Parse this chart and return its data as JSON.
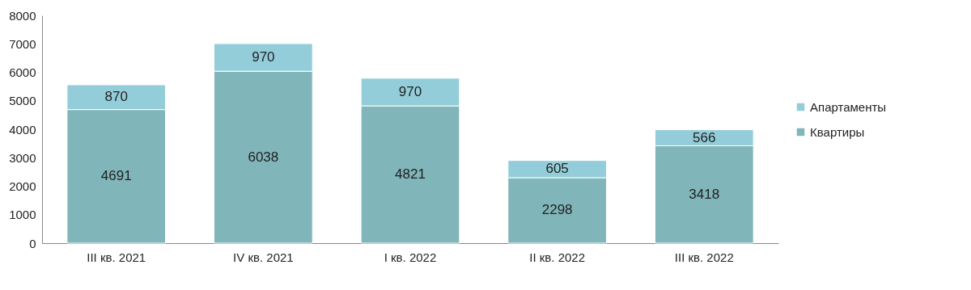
{
  "chart_data": {
    "type": "bar",
    "stacked": true,
    "categories": [
      "III кв. 2021",
      "IV кв. 2021",
      "I кв. 2022",
      "II кв. 2022",
      "III кв. 2022"
    ],
    "series": [
      {
        "name": "Квартиры",
        "color": "#80b5b9",
        "values": [
          4691,
          6038,
          4821,
          2298,
          3418
        ]
      },
      {
        "name": "Апартаменты",
        "color": "#93cdd9",
        "values": [
          870,
          970,
          970,
          605,
          566
        ]
      }
    ],
    "ylim": [
      0,
      8000
    ],
    "yticks": [
      0,
      1000,
      2000,
      3000,
      4000,
      5000,
      6000,
      7000,
      8000
    ],
    "grid": false,
    "legend": "right",
    "data_labels": true
  }
}
